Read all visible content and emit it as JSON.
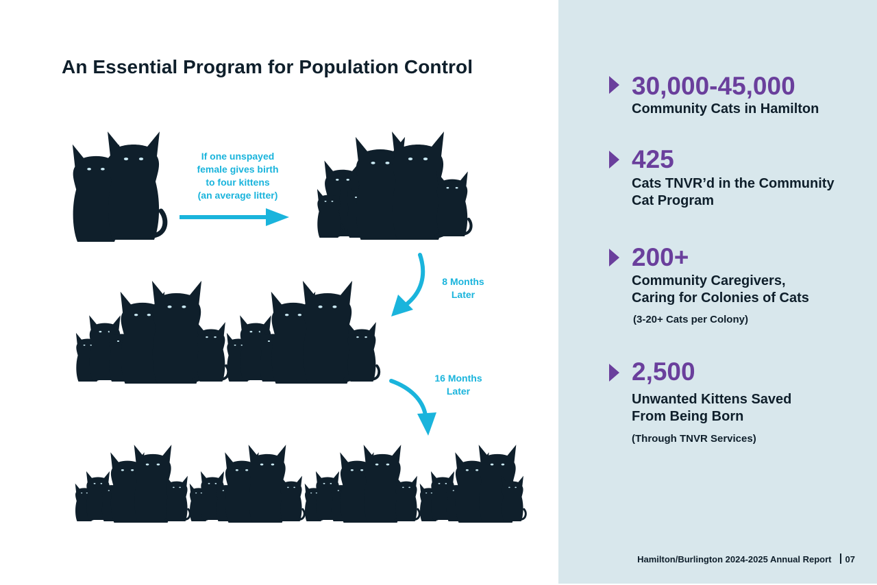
{
  "title": "An Essential Program for Population Control",
  "captions": {
    "litter": [
      "If one unspayed",
      "female gives birth",
      "to four kittens",
      "(an average litter)"
    ],
    "eight_months": [
      "8 Months",
      "Later"
    ],
    "sixteen_months": [
      "16 Months",
      "Later"
    ]
  },
  "colors": {
    "accent_cyan": "#1ab4dc",
    "stat_purple": "#6a3f9c",
    "cat_silhouette": "#0f1f2b",
    "panel_bg": "#d8e7ec"
  },
  "icons": [
    "cat-silhouette-icon",
    "arrow-right-icon",
    "arrow-curved-down-icon",
    "triangle-bullet-icon"
  ],
  "stats": [
    {
      "number": "30,000-45,000",
      "lines": [
        "Community Cats in Hamilton"
      ],
      "note": ""
    },
    {
      "number": "425",
      "lines": [
        "Cats TNVR’d in the Community",
        "Cat Program"
      ],
      "note": ""
    },
    {
      "number": "200+",
      "lines": [
        "Community Caregivers,",
        "Caring for Colonies of Cats"
      ],
      "note": "(3-20+ Cats per Colony)"
    },
    {
      "number": "2,500",
      "lines": [
        "Unwanted Kittens Saved",
        "From Being Born"
      ],
      "note": "(Through TNVR Services)"
    }
  ],
  "footer": {
    "report": "Hamilton/Burlington 2024-2025 Annual Report",
    "page": "07"
  }
}
